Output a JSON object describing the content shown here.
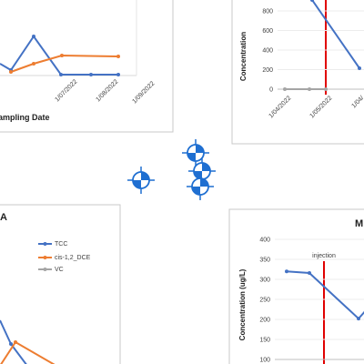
{
  "top_left": {
    "x_labels": [
      "1/07/2022",
      "1/08/2022",
      "1/09/2022"
    ],
    "x_axis_title": "ampling Date"
  },
  "top_right": {
    "y_axis_title": "Concentration",
    "yticks": [
      0,
      200,
      400,
      600,
      800
    ],
    "ylim": [
      0,
      800
    ],
    "x_labels": [
      "1/04/2022",
      "1/05/2022",
      "1/04/"
    ],
    "blue_line": [
      912,
      214
    ],
    "flat_line": [
      0,
      0,
      0
    ]
  },
  "bottom_left": {
    "title": "A",
    "legend": [
      "TCC",
      "cis-1,2_DCE",
      "VC"
    ]
  },
  "bottom_right": {
    "title": "M",
    "y_axis_title": "Concentration (ug/L)",
    "annotation": "injection",
    "yticks": [
      100,
      150,
      200,
      250,
      300,
      350,
      400
    ],
    "ylim": [
      100,
      400
    ],
    "blue_line": [
      320,
      316,
      202,
      225
    ]
  }
}
